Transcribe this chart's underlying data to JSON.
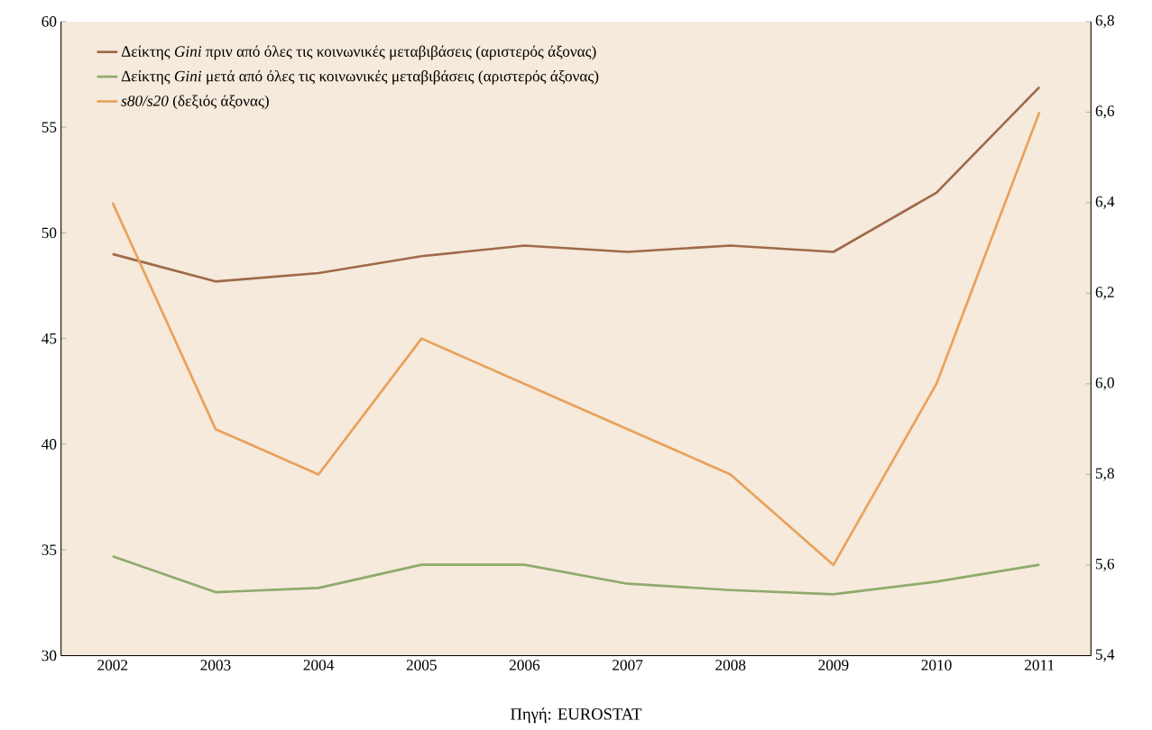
{
  "chart_data": {
    "type": "line",
    "categories": [
      "2002",
      "2003",
      "2004",
      "2005",
      "2006",
      "2007",
      "2008",
      "2009",
      "2010",
      "2011"
    ],
    "series": [
      {
        "name": "Δείκτης *Gini* πριν από όλες τις κοινωνικές μεταβιβάσεις (αριστερός άξονας)",
        "color": "#a0694a",
        "axis": "y",
        "values": [
          49.0,
          47.7,
          48.1,
          48.9,
          49.4,
          49.1,
          49.4,
          49.1,
          51.9,
          56.9
        ]
      },
      {
        "name": "Δείκτης *Gini* μετά από όλες τις κοινωνικές μεταβιβάσεις (αριστερός άξονας)",
        "color": "#8faa6c",
        "axis": "y",
        "values": [
          34.7,
          33.0,
          33.2,
          34.3,
          34.3,
          33.4,
          33.1,
          32.9,
          33.5,
          34.3
        ]
      },
      {
        "name": "*s80/s20* (δεξιός άξονας)",
        "color": "#e9a15c",
        "axis": "y2",
        "values": [
          6.4,
          5.9,
          5.8,
          6.1,
          6.0,
          5.9,
          5.8,
          5.6,
          6.0,
          6.6
        ]
      }
    ],
    "ylim": [
      30,
      60
    ],
    "yticks": [
      30,
      35,
      40,
      45,
      50,
      55,
      60
    ],
    "y2lim": [
      5.4,
      6.8
    ],
    "y2ticks": [
      {
        "value": 5.4,
        "label": "5,4"
      },
      {
        "value": 5.6,
        "label": "5,6"
      },
      {
        "value": 5.8,
        "label": "5,8"
      },
      {
        "value": 6.0,
        "label": "6,0"
      },
      {
        "value": 6.2,
        "label": "6,2"
      },
      {
        "value": 6.4,
        "label": "6,4"
      },
      {
        "value": 6.6,
        "label": "6,6"
      },
      {
        "value": 6.8,
        "label": "6,8"
      }
    ],
    "legend": "top left",
    "marker": "none",
    "annotations": [
      "Πηγή: EUROSTAT"
    ]
  }
}
